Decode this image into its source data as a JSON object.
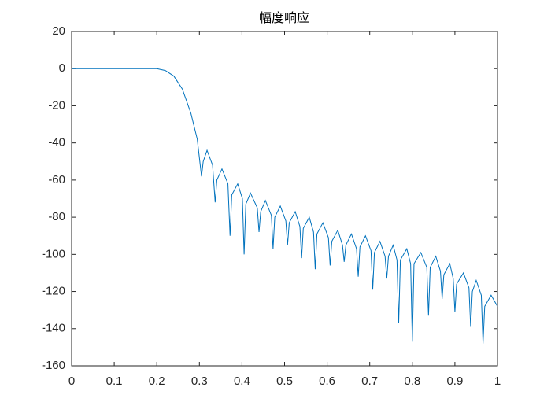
{
  "chart_data": {
    "type": "line",
    "title": "幅度响应",
    "x": [
      0,
      0.1,
      0.2,
      0.22,
      0.24,
      0.26,
      0.28,
      0.295,
      0.305,
      0.309,
      0.318,
      0.331,
      0.337,
      0.341,
      0.353,
      0.367,
      0.372,
      0.376,
      0.39,
      0.401,
      0.405,
      0.409,
      0.42,
      0.436,
      0.44,
      0.444,
      0.455,
      0.469,
      0.473,
      0.477,
      0.49,
      0.503,
      0.507,
      0.511,
      0.525,
      0.536,
      0.54,
      0.544,
      0.558,
      0.568,
      0.572,
      0.576,
      0.59,
      0.603,
      0.607,
      0.611,
      0.625,
      0.636,
      0.64,
      0.644,
      0.657,
      0.669,
      0.673,
      0.677,
      0.69,
      0.703,
      0.707,
      0.711,
      0.724,
      0.736,
      0.74,
      0.744,
      0.755,
      0.764,
      0.768,
      0.772,
      0.787,
      0.796,
      0.8,
      0.804,
      0.82,
      0.834,
      0.838,
      0.842,
      0.855,
      0.866,
      0.87,
      0.874,
      0.888,
      0.896,
      0.9,
      0.904,
      0.92,
      0.933,
      0.937,
      0.941,
      0.95,
      0.962,
      0.966,
      0.97,
      0.985,
      1.0
    ],
    "series": [
      {
        "color": "#0072bd",
        "values": [
          0,
          0,
          0,
          -1,
          -4,
          -11,
          -24,
          -38,
          -58,
          -50,
          -44,
          -52,
          -72,
          -60,
          -54,
          -62,
          -90,
          -68,
          -62,
          -70,
          -100,
          -73,
          -67,
          -75,
          -88,
          -77,
          -71,
          -79,
          -97,
          -80,
          -74,
          -82,
          -95,
          -83,
          -77,
          -85,
          -102,
          -86,
          -80,
          -88,
          -108,
          -89,
          -83,
          -91,
          -106,
          -93,
          -87,
          -95,
          -104,
          -95,
          -89,
          -97,
          -112,
          -96,
          -90,
          -98,
          -119,
          -99,
          -93,
          -101,
          -113,
          -101,
          -95,
          -103,
          -137,
          -103,
          -97,
          -105,
          -147,
          -105,
          -99,
          -107,
          -133,
          -107,
          -101,
          -109,
          -124,
          -111,
          -105,
          -113,
          -131,
          -116,
          -110,
          -118,
          -139,
          -120,
          -114,
          -122,
          -148,
          -128,
          -122,
          -128
        ]
      }
    ],
    "xlim": [
      0,
      1
    ],
    "ylim": [
      -160,
      20
    ],
    "xticks": [
      0,
      0.1,
      0.2,
      0.3,
      0.4,
      0.5,
      0.6,
      0.7,
      0.8,
      0.9,
      1
    ],
    "yticks": [
      -160,
      -140,
      -120,
      -100,
      -80,
      -60,
      -40,
      -20,
      0,
      20
    ]
  }
}
